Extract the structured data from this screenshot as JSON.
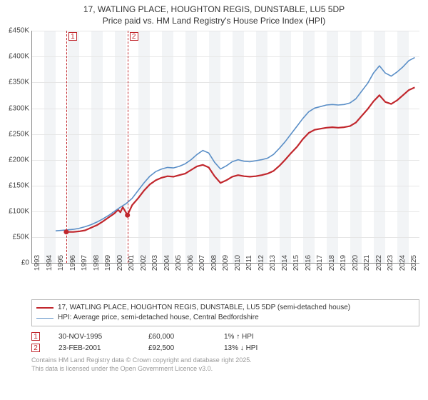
{
  "title": {
    "line1": "17, WATLING PLACE, HOUGHTON REGIS, DUNSTABLE, LU5 5DP",
    "line2": "Price paid vs. HM Land Registry's House Price Index (HPI)",
    "fontsize": 12,
    "color": "#333333"
  },
  "chart": {
    "type": "line",
    "background_color": "#ffffff",
    "band_color": "#f2f4f6",
    "grid_color": "#e6e6e6",
    "axis_color": "#888888",
    "xlim": [
      1993,
      2025.9
    ],
    "ylim": [
      0,
      450000
    ],
    "ytick_step": 50000,
    "ytick_labels": [
      "£0",
      "£50K",
      "£100K",
      "£150K",
      "£200K",
      "£250K",
      "£300K",
      "£350K",
      "£400K",
      "£450K"
    ],
    "xtick_years": [
      1993,
      1994,
      1995,
      1996,
      1997,
      1998,
      1999,
      2000,
      2001,
      2002,
      2003,
      2004,
      2005,
      2006,
      2007,
      2008,
      2009,
      2010,
      2011,
      2012,
      2013,
      2014,
      2015,
      2016,
      2017,
      2018,
      2019,
      2020,
      2021,
      2022,
      2023,
      2024,
      2025
    ],
    "label_fontsize": 10,
    "series": [
      {
        "name": "price_paid",
        "color": "#c1272d",
        "width": 2.2,
        "points": [
          [
            1995.9,
            60000
          ],
          [
            1996.5,
            60000
          ],
          [
            1997.0,
            61000
          ],
          [
            1997.5,
            63000
          ],
          [
            1998.0,
            68000
          ],
          [
            1998.5,
            73000
          ],
          [
            1999.0,
            80000
          ],
          [
            1999.5,
            88000
          ],
          [
            2000.0,
            96000
          ],
          [
            2000.3,
            103000
          ],
          [
            2000.5,
            98000
          ],
          [
            2000.7,
            108000
          ],
          [
            2001.1,
            92500
          ],
          [
            2001.5,
            112000
          ],
          [
            2002.0,
            125000
          ],
          [
            2002.5,
            140000
          ],
          [
            2003.0,
            152000
          ],
          [
            2003.5,
            160000
          ],
          [
            2004.0,
            165000
          ],
          [
            2004.5,
            168000
          ],
          [
            2005.0,
            167000
          ],
          [
            2005.5,
            170000
          ],
          [
            2006.0,
            173000
          ],
          [
            2006.5,
            180000
          ],
          [
            2007.0,
            187000
          ],
          [
            2007.5,
            190000
          ],
          [
            2008.0,
            185000
          ],
          [
            2008.5,
            168000
          ],
          [
            2009.0,
            155000
          ],
          [
            2009.5,
            160000
          ],
          [
            2010.0,
            167000
          ],
          [
            2010.5,
            170000
          ],
          [
            2011.0,
            168000
          ],
          [
            2011.5,
            167000
          ],
          [
            2012.0,
            168000
          ],
          [
            2012.5,
            170000
          ],
          [
            2013.0,
            173000
          ],
          [
            2013.5,
            178000
          ],
          [
            2014.0,
            188000
          ],
          [
            2014.5,
            200000
          ],
          [
            2015.0,
            213000
          ],
          [
            2015.5,
            225000
          ],
          [
            2016.0,
            240000
          ],
          [
            2016.5,
            252000
          ],
          [
            2017.0,
            258000
          ],
          [
            2017.5,
            260000
          ],
          [
            2018.0,
            262000
          ],
          [
            2018.5,
            263000
          ],
          [
            2019.0,
            262000
          ],
          [
            2019.5,
            263000
          ],
          [
            2020.0,
            265000
          ],
          [
            2020.5,
            272000
          ],
          [
            2021.0,
            285000
          ],
          [
            2021.5,
            298000
          ],
          [
            2022.0,
            313000
          ],
          [
            2022.5,
            325000
          ],
          [
            2023.0,
            312000
          ],
          [
            2023.5,
            308000
          ],
          [
            2024.0,
            315000
          ],
          [
            2024.5,
            325000
          ],
          [
            2025.0,
            335000
          ],
          [
            2025.5,
            340000
          ]
        ]
      },
      {
        "name": "hpi",
        "color": "#5b8fc7",
        "width": 1.6,
        "points": [
          [
            1995.0,
            62000
          ],
          [
            1995.5,
            63000
          ],
          [
            1996.0,
            64000
          ],
          [
            1996.5,
            65000
          ],
          [
            1997.0,
            67000
          ],
          [
            1997.5,
            70000
          ],
          [
            1998.0,
            74000
          ],
          [
            1998.5,
            79000
          ],
          [
            1999.0,
            85000
          ],
          [
            1999.5,
            92000
          ],
          [
            2000.0,
            100000
          ],
          [
            2000.5,
            108000
          ],
          [
            2001.0,
            115000
          ],
          [
            2001.5,
            125000
          ],
          [
            2002.0,
            140000
          ],
          [
            2002.5,
            155000
          ],
          [
            2003.0,
            168000
          ],
          [
            2003.5,
            177000
          ],
          [
            2004.0,
            182000
          ],
          [
            2004.5,
            185000
          ],
          [
            2005.0,
            184000
          ],
          [
            2005.5,
            187000
          ],
          [
            2006.0,
            192000
          ],
          [
            2006.5,
            200000
          ],
          [
            2007.0,
            210000
          ],
          [
            2007.5,
            218000
          ],
          [
            2008.0,
            213000
          ],
          [
            2008.5,
            195000
          ],
          [
            2009.0,
            182000
          ],
          [
            2009.5,
            188000
          ],
          [
            2010.0,
            196000
          ],
          [
            2010.5,
            200000
          ],
          [
            2011.0,
            197000
          ],
          [
            2011.5,
            196000
          ],
          [
            2012.0,
            198000
          ],
          [
            2012.5,
            200000
          ],
          [
            2013.0,
            203000
          ],
          [
            2013.5,
            210000
          ],
          [
            2014.0,
            222000
          ],
          [
            2014.5,
            235000
          ],
          [
            2015.0,
            250000
          ],
          [
            2015.5,
            265000
          ],
          [
            2016.0,
            280000
          ],
          [
            2016.5,
            293000
          ],
          [
            2017.0,
            300000
          ],
          [
            2017.5,
            303000
          ],
          [
            2018.0,
            306000
          ],
          [
            2018.5,
            307000
          ],
          [
            2019.0,
            306000
          ],
          [
            2019.5,
            307000
          ],
          [
            2020.0,
            310000
          ],
          [
            2020.5,
            318000
          ],
          [
            2021.0,
            333000
          ],
          [
            2021.5,
            348000
          ],
          [
            2022.0,
            368000
          ],
          [
            2022.5,
            382000
          ],
          [
            2023.0,
            368000
          ],
          [
            2023.5,
            362000
          ],
          [
            2024.0,
            370000
          ],
          [
            2024.5,
            380000
          ],
          [
            2025.0,
            392000
          ],
          [
            2025.5,
            398000
          ]
        ]
      }
    ],
    "sale_markers": [
      {
        "idx": "1",
        "x": 1995.9,
        "y": 60000
      },
      {
        "idx": "2",
        "x": 2001.1,
        "y": 92500
      }
    ],
    "sale_marker_color": "#c1272d"
  },
  "legend": {
    "items": [
      {
        "color": "#c1272d",
        "width": 2.2,
        "label": "17, WATLING PLACE, HOUGHTON REGIS, DUNSTABLE, LU5 5DP (semi-detached house)"
      },
      {
        "color": "#5b8fc7",
        "width": 1.6,
        "label": "HPI: Average price, semi-detached house, Central Bedfordshire"
      }
    ],
    "border_color": "#bbbbbb",
    "fontsize": 10
  },
  "transactions": [
    {
      "idx": "1",
      "date": "30-NOV-1995",
      "price": "£60,000",
      "hpi": "1% ↑ HPI"
    },
    {
      "idx": "2",
      "date": "23-FEB-2001",
      "price": "£92,500",
      "hpi": "13% ↓ HPI"
    }
  ],
  "footer": {
    "line1": "Contains HM Land Registry data © Crown copyright and database right 2025.",
    "line2": "This data is licensed under the Open Government Licence v3.0.",
    "color": "#999999",
    "fontsize": 9
  }
}
